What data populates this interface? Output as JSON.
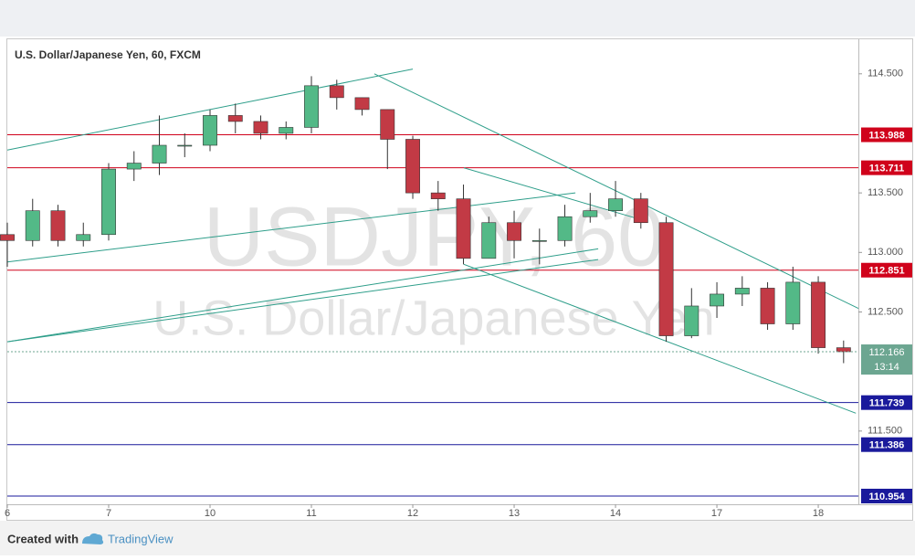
{
  "chart_data": {
    "type": "candlestick",
    "title": "U.S. Dollar/Japanese Yen, 60, FXCM",
    "watermark_symbol": "USDJPY, 60",
    "watermark_name": "U.S. Dollar/Japanese Yen",
    "x": [
      0,
      6,
      12,
      18,
      24,
      30,
      36,
      42,
      48,
      54,
      60,
      66,
      72,
      78,
      84,
      90,
      96,
      102,
      108,
      114,
      120,
      126,
      132,
      138,
      144,
      150,
      156,
      162,
      168,
      174,
      180,
      186,
      192,
      198
    ],
    "open": [
      113.15,
      113.1,
      113.35,
      113.1,
      113.15,
      113.7,
      113.75,
      113.9,
      113.9,
      114.15,
      114.1,
      114.0,
      114.05,
      114.4,
      114.3,
      114.2,
      113.95,
      113.5,
      113.45,
      112.95,
      113.25,
      113.1,
      113.1,
      113.3,
      113.35,
      113.45,
      113.25,
      112.3,
      112.55,
      112.65,
      112.7,
      112.4,
      112.75,
      112.2
    ],
    "high": [
      113.25,
      113.45,
      113.4,
      113.25,
      113.75,
      113.85,
      114.15,
      114.0,
      114.2,
      114.25,
      114.15,
      114.1,
      114.48,
      114.45,
      114.3,
      114.2,
      113.98,
      113.6,
      113.57,
      113.3,
      113.35,
      113.2,
      113.4,
      113.5,
      113.6,
      113.5,
      113.3,
      112.7,
      112.75,
      112.8,
      112.75,
      112.88,
      112.8,
      112.26
    ],
    "low": [
      112.88,
      113.05,
      113.05,
      113.05,
      113.1,
      113.6,
      113.65,
      113.8,
      113.85,
      114.0,
      113.95,
      113.95,
      114.0,
      114.2,
      114.15,
      113.7,
      113.45,
      113.35,
      112.9,
      112.95,
      112.95,
      112.9,
      113.05,
      113.25,
      113.3,
      113.2,
      112.25,
      112.28,
      112.45,
      112.55,
      112.35,
      112.35,
      112.15,
      112.07
    ],
    "close": [
      113.1,
      113.35,
      113.1,
      113.15,
      113.7,
      113.75,
      113.9,
      113.9,
      114.15,
      114.1,
      114.0,
      114.05,
      114.4,
      114.3,
      114.2,
      113.95,
      113.5,
      113.45,
      112.95,
      113.25,
      113.1,
      113.1,
      113.3,
      113.35,
      113.45,
      113.25,
      112.3,
      112.55,
      112.65,
      112.7,
      112.4,
      112.75,
      112.2,
      112.166
    ],
    "up_color": "#53b987",
    "down_color": "#c23a45",
    "xlim": [
      0,
      201.5
    ],
    "xticks": [
      {
        "value": 0,
        "label": "6"
      },
      {
        "value": 24,
        "label": "7"
      },
      {
        "value": 48,
        "label": "10"
      },
      {
        "value": 72,
        "label": "11"
      },
      {
        "value": 96,
        "label": "12"
      },
      {
        "value": 120,
        "label": "13"
      },
      {
        "value": 144,
        "label": "14"
      },
      {
        "value": 168,
        "label": "17"
      },
      {
        "value": 192,
        "label": "18"
      }
    ],
    "ylim": [
      110.885,
      114.79
    ],
    "yticks": [
      {
        "value": 114.5,
        "label": "114.500"
      },
      {
        "value": 113.5,
        "label": "113.500"
      },
      {
        "value": 113,
        "label": "113.000"
      },
      {
        "value": 112.5,
        "label": "112.500"
      },
      {
        "value": 111.5,
        "label": "111.500"
      }
    ],
    "levels": [
      {
        "value": 113.988,
        "color": "#d0021b"
      },
      {
        "value": 113.711,
        "color": "#d0021b"
      },
      {
        "value": 112.851,
        "color": "#d0021b"
      },
      {
        "value": 111.739,
        "color": "#1a1a9c"
      },
      {
        "value": 111.386,
        "color": "#1a1a9c"
      },
      {
        "value": 110.954,
        "color": "#1a1a9c"
      }
    ],
    "last_price": {
      "value": 112.166,
      "countdown": "13:14",
      "color": "#6ca691"
    },
    "trend_color": "#2e9e8a",
    "trend_lines": [
      {
        "x": [
          0,
          96
        ],
        "y": [
          113.86,
          114.54
        ]
      },
      {
        "x": [
          0,
          134.5
        ],
        "y": [
          112.92,
          113.5
        ]
      },
      {
        "x": [
          0,
          139.9
        ],
        "y": [
          112.25,
          113.03
        ]
      },
      {
        "x": [
          0,
          139.9
        ],
        "y": [
          112.25,
          112.94
        ]
      },
      {
        "x": [
          86.9,
          201.5
        ],
        "y": [
          114.5,
          112.53
        ]
      },
      {
        "x": [
          108.1,
          149.6
        ],
        "y": [
          113.71,
          113.28
        ]
      },
      {
        "x": [
          108.1,
          200.9
        ],
        "y": [
          112.9,
          111.65
        ]
      }
    ],
    "footer_created": "Created with",
    "footer_brand": "TradingView"
  }
}
